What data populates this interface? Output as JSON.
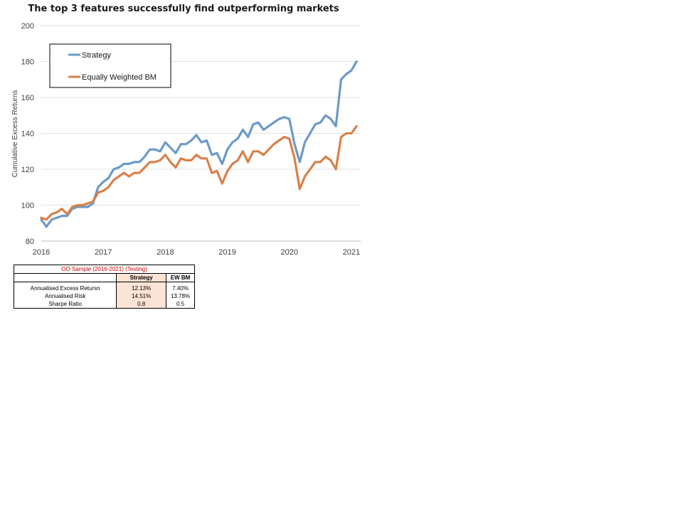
{
  "chart_data": {
    "type": "line",
    "title": "The top 3 features successfully find outperforming markets",
    "ylabel": "Cumulative Excess Returns",
    "xlabel": "",
    "ylim": [
      80,
      200
    ],
    "yticks": [
      80,
      100,
      120,
      140,
      160,
      180,
      200
    ],
    "xlim": [
      2016,
      2021.15
    ],
    "xticks": [
      2016,
      2017,
      2018,
      2019,
      2020,
      2021
    ],
    "grid": true,
    "legend_position": "top-left",
    "colors": {
      "Strategy": "#6b9ac9",
      "Equally Weighted BM": "#d9804a"
    },
    "x": [
      2016.0,
      2016.083,
      2016.167,
      2016.25,
      2016.333,
      2016.417,
      2016.5,
      2016.583,
      2016.667,
      2016.75,
      2016.833,
      2016.917,
      2017.0,
      2017.083,
      2017.167,
      2017.25,
      2017.333,
      2017.417,
      2017.5,
      2017.583,
      2017.667,
      2017.75,
      2017.833,
      2017.917,
      2018.0,
      2018.083,
      2018.167,
      2018.25,
      2018.333,
      2018.417,
      2018.5,
      2018.583,
      2018.667,
      2018.75,
      2018.833,
      2018.917,
      2019.0,
      2019.083,
      2019.167,
      2019.25,
      2019.333,
      2019.417,
      2019.5,
      2019.583,
      2019.667,
      2019.75,
      2019.833,
      2019.917,
      2020.0,
      2020.083,
      2020.167,
      2020.25,
      2020.333,
      2020.417,
      2020.5,
      2020.583,
      2020.667,
      2020.75,
      2020.833,
      2020.917,
      2021.0,
      2021.083
    ],
    "series": [
      {
        "name": "Strategy",
        "values": [
          92,
          88,
          92,
          93,
          94,
          94,
          98,
          99,
          99,
          99,
          101,
          110,
          113,
          115,
          120,
          121,
          123,
          123,
          124,
          124,
          127,
          131,
          131,
          130,
          135,
          132,
          129,
          134,
          134,
          136,
          139,
          135,
          136,
          128,
          129,
          123,
          131,
          135,
          137,
          142,
          138,
          145,
          146,
          142,
          144,
          146,
          148,
          149,
          148,
          134,
          124,
          135,
          140,
          145,
          146,
          150,
          148,
          144,
          170,
          173,
          175,
          180
        ]
      },
      {
        "name": "Equally Weighted BM",
        "values": [
          93,
          92,
          95,
          96,
          98,
          95,
          99,
          100,
          100,
          101,
          102,
          107,
          108,
          110,
          114,
          116,
          118,
          116,
          118,
          118,
          121,
          124,
          124,
          125,
          128,
          124,
          121,
          126,
          125,
          125,
          128,
          126,
          126,
          118,
          119,
          112,
          119,
          123,
          125,
          130,
          124,
          130,
          130,
          128,
          131,
          134,
          136,
          138,
          137,
          126,
          109,
          116,
          120,
          124,
          124,
          127,
          125,
          120,
          138,
          140,
          140,
          144
        ]
      }
    ]
  },
  "stats_table": {
    "caption": "OO Sample (2016-2021) (Testing)",
    "headers": [
      "",
      "Strategy",
      "EW BM"
    ],
    "rows": [
      {
        "label": "Annualised Excess Retursn",
        "strategy": "12.13%",
        "ew_bm": "7.40%"
      },
      {
        "label": "Annualised Risk",
        "strategy": "14.51%",
        "ew_bm": "13.78%"
      },
      {
        "label": "Sharpe Ratio",
        "strategy": "0.8",
        "ew_bm": "0.5"
      }
    ]
  }
}
